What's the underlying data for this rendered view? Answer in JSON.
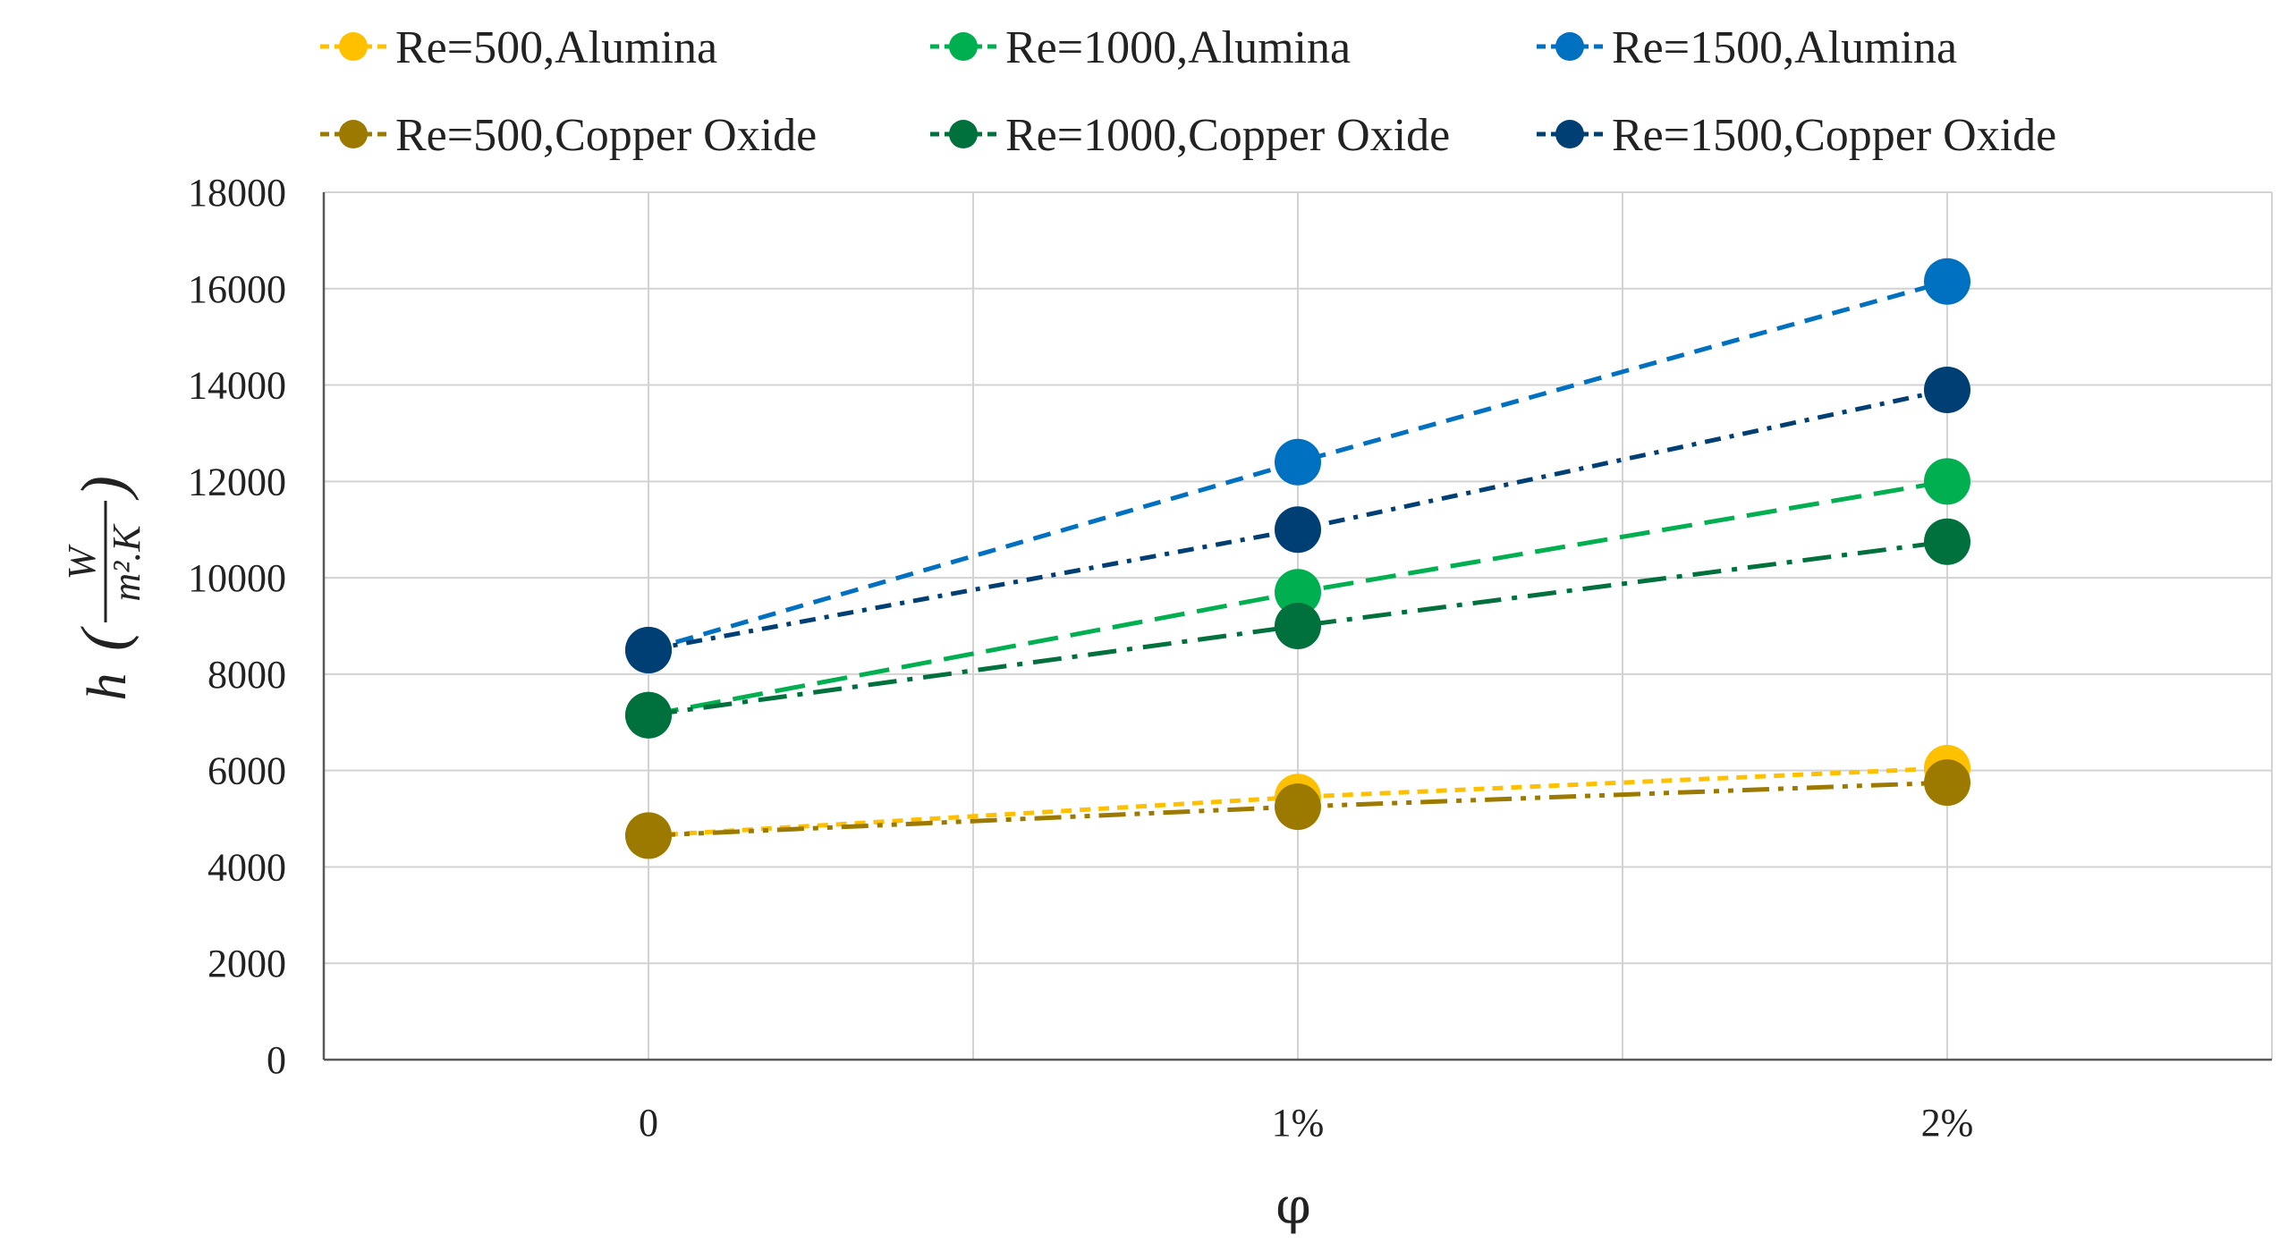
{
  "chart_data": {
    "type": "line",
    "categories": [
      "0",
      "1%",
      "2%"
    ],
    "series": [
      {
        "name": "Re=500,Alumina",
        "values": [
          4650,
          5450,
          6050
        ],
        "color": "#FFC000",
        "dash": "short-dash"
      },
      {
        "name": "Re=1000,Alumina",
        "values": [
          7150,
          9700,
          12000
        ],
        "color": "#00B050",
        "dash": "long-dash"
      },
      {
        "name": "Re=1500,Alumina",
        "values": [
          8500,
          12400,
          16150
        ],
        "color": "#0070C0",
        "dash": "dash"
      },
      {
        "name": "Re=500,Copper Oxide",
        "values": [
          4650,
          5250,
          5750
        ],
        "color": "#9C7A00",
        "dash": "long-dash-dot-dot"
      },
      {
        "name": "Re=1000,Copper Oxide",
        "values": [
          7150,
          9000,
          10750
        ],
        "color": "#00703C",
        "dash": "long-dash-dot"
      },
      {
        "name": "Re=1500,Copper Oxide",
        "values": [
          8500,
          11000,
          13900
        ],
        "color": "#003F73",
        "dash": "dash-dot"
      }
    ],
    "yticks": [
      "0",
      "2000",
      "4000",
      "6000",
      "8000",
      "10000",
      "12000",
      "14000",
      "16000",
      "18000"
    ],
    "ylim": [
      0,
      18000
    ],
    "xlabel": "φ",
    "ylabel_prefix": "h",
    "ylabel_numerator": "W",
    "ylabel_denominator": "m².K",
    "grid": true,
    "legend_position": "top"
  }
}
